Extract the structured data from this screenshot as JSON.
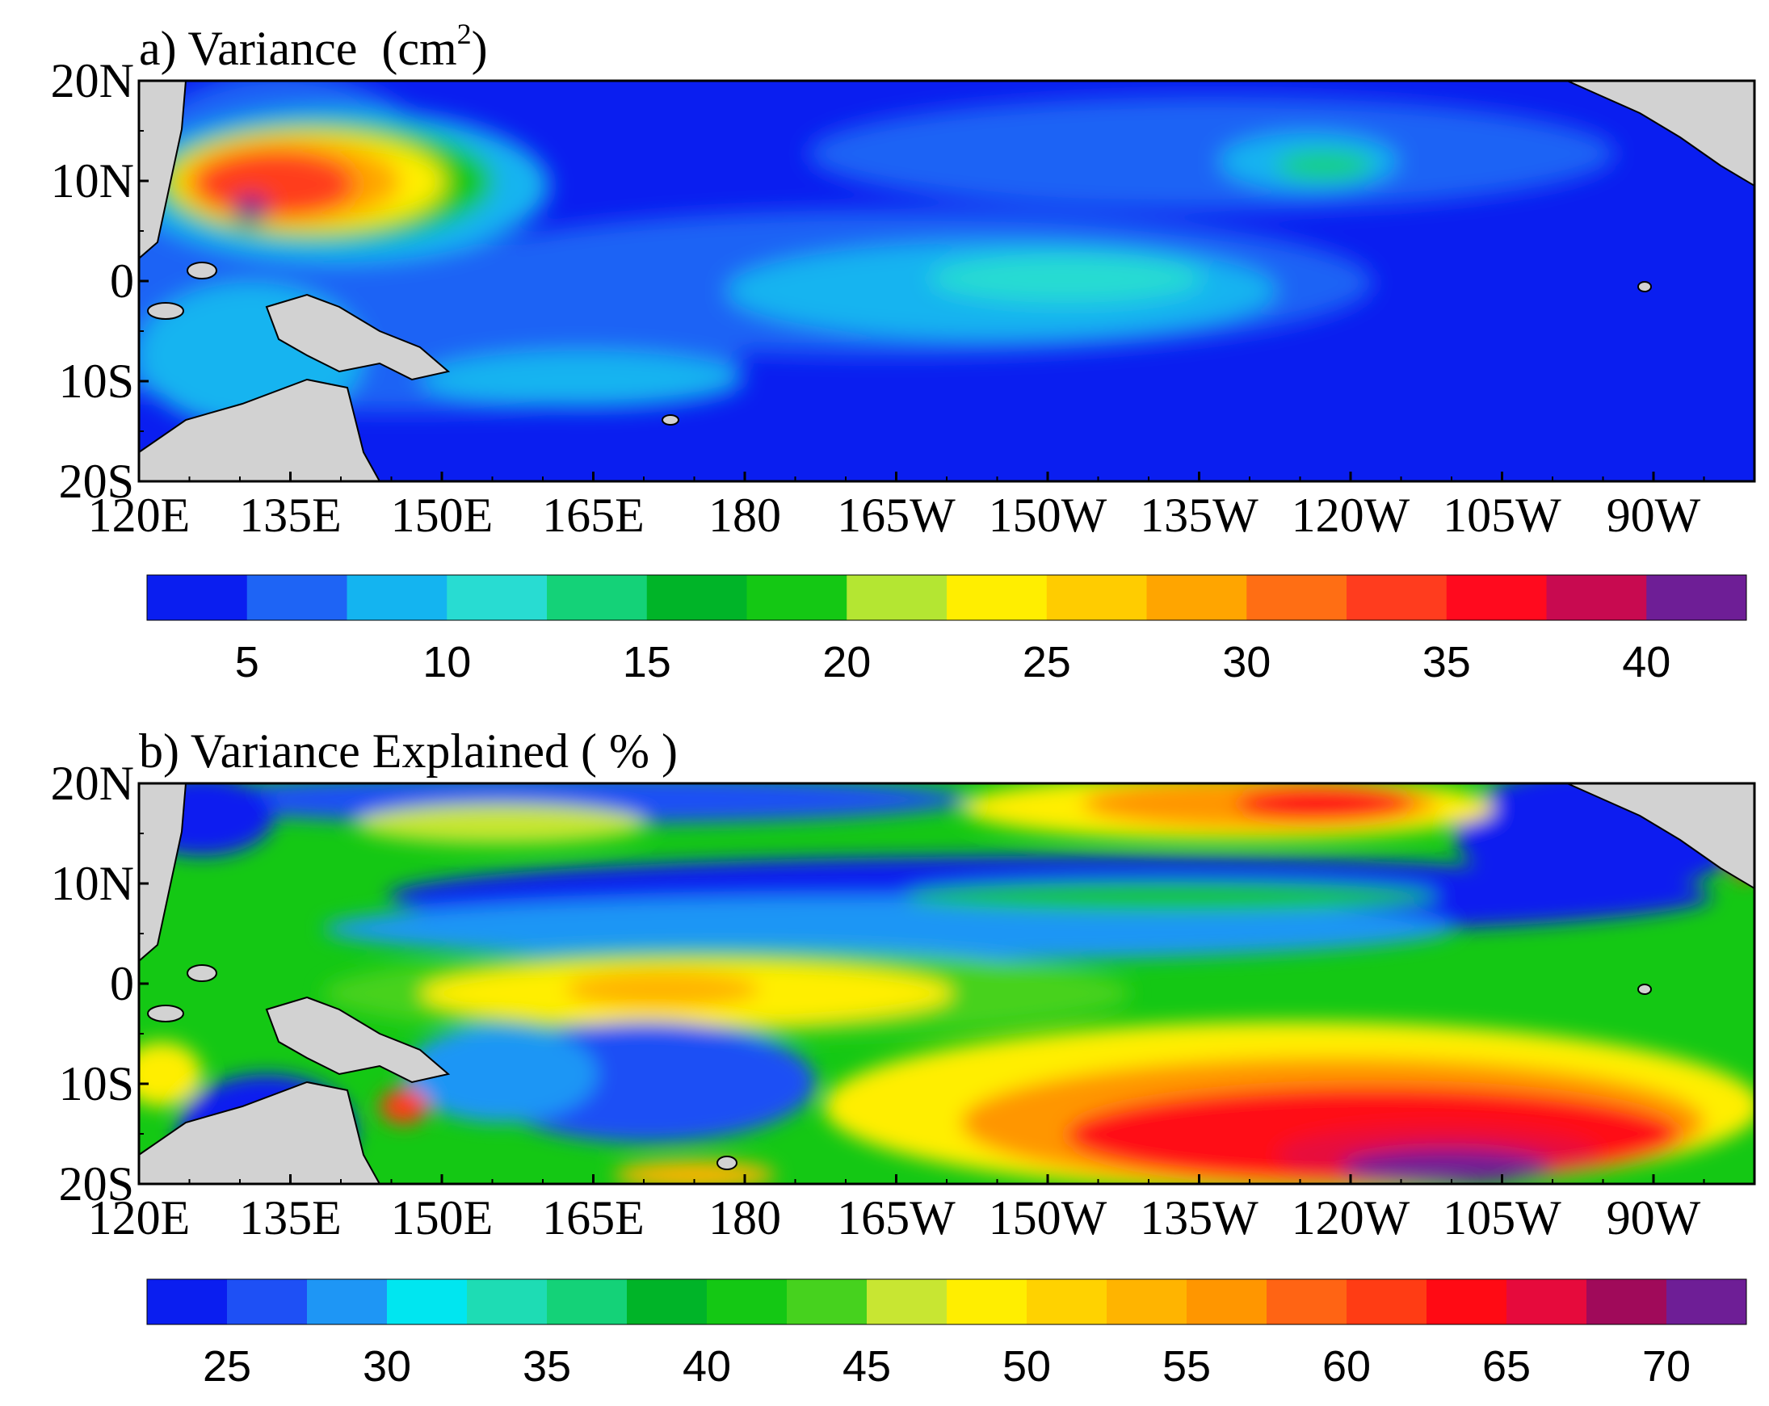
{
  "chart_data": [
    {
      "type": "heatmap",
      "panel": "a",
      "title": "a) Variance",
      "title_unit_base": "(cm",
      "title_unit_sup": "2",
      "title_unit_close": ")",
      "x_ticks": [
        "120E",
        "135E",
        "150E",
        "165E",
        "180",
        "165W",
        "150W",
        "135W",
        "120W",
        "105W",
        "90W"
      ],
      "y_ticks": [
        "20N",
        "10N",
        "0",
        "10S",
        "20S"
      ],
      "lon_range": [
        120,
        280
      ],
      "lat_range": [
        -20,
        20
      ],
      "colorbar": {
        "levels": [
          5,
          10,
          15,
          20,
          25,
          30,
          35,
          40
        ],
        "labels": [
          "5",
          "10",
          "15",
          "20",
          "25",
          "30",
          "35",
          "40"
        ],
        "colors": [
          "#0a1ef0",
          "#1e64f5",
          "#14b4f0",
          "#28dcd2",
          "#14d278",
          "#00b428",
          "#14c814",
          "#b4e632",
          "#ffee00",
          "#ffcc00",
          "#ffa500",
          "#ff6e14",
          "#ff3c1e",
          "#ff0a1e",
          "#c80a50",
          "#6e1e96"
        ]
      },
      "features": [
        {
          "lon": 133,
          "lat": 8,
          "value": 38
        },
        {
          "lon": 145,
          "lat": 9,
          "value": 28
        },
        {
          "lon": 152,
          "lat": 10,
          "value": 18
        },
        {
          "lon": 212,
          "lat": -1,
          "value": 12
        },
        {
          "lon": 240,
          "lat": 11,
          "value": 14
        }
      ]
    },
    {
      "type": "heatmap",
      "panel": "b",
      "title": "b) Variance Explained ( % )",
      "x_ticks": [
        "120E",
        "135E",
        "150E",
        "165E",
        "180",
        "165W",
        "150W",
        "135W",
        "120W",
        "105W",
        "90W"
      ],
      "y_ticks": [
        "20N",
        "10N",
        "0",
        "10S",
        "20S"
      ],
      "lon_range": [
        120,
        280
      ],
      "lat_range": [
        -20,
        20
      ],
      "colorbar": {
        "levels": [
          25,
          30,
          35,
          40,
          45,
          50,
          55,
          60,
          65,
          70
        ],
        "labels": [
          "25",
          "30",
          "35",
          "40",
          "45",
          "50",
          "55",
          "60",
          "65",
          "70"
        ],
        "colors": [
          "#0a1ef0",
          "#1e50f5",
          "#1e96f5",
          "#00e6f0",
          "#1edcb4",
          "#14d278",
          "#00b428",
          "#14c814",
          "#46d21e",
          "#c8e632",
          "#ffee00",
          "#ffd200",
          "#ffb400",
          "#ff9600",
          "#ff6414",
          "#ff3c14",
          "#ff0a14",
          "#e60a3c",
          "#a00a5a",
          "#6e1e96"
        ]
      },
      "features": [
        {
          "lon": 245,
          "lat": -16,
          "value": 70
        },
        {
          "lon": 236,
          "lat": 18,
          "value": 62
        },
        {
          "lon": 180,
          "lat": -3,
          "value": 50
        },
        {
          "lon": 230,
          "lat": 9,
          "value": 43
        },
        {
          "lon": 170,
          "lat": -12,
          "value": 28
        }
      ]
    }
  ],
  "colors": {
    "land": "#d2d2d2",
    "ocean_base": "#0a1ef0"
  }
}
